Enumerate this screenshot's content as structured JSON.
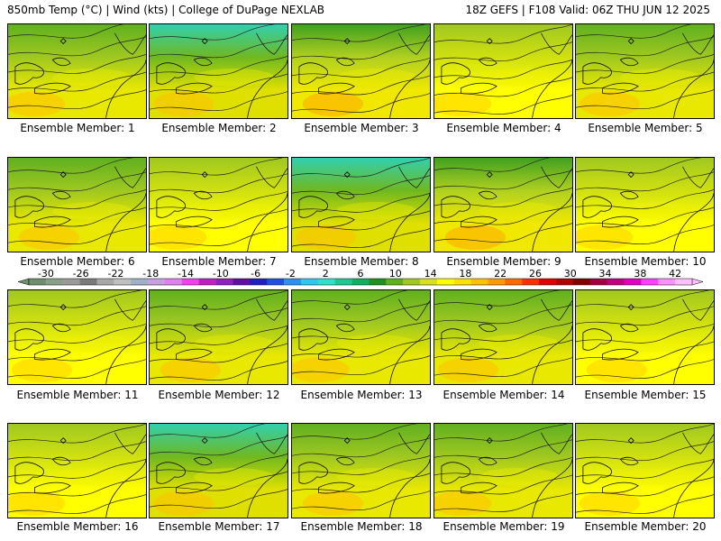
{
  "header": {
    "left": "850mb Temp (°C) | Wind (kts) | College of DuPage NEXLAB",
    "right": "18Z GEFS | F108 Valid: 06Z THU JUN 12 2025"
  },
  "members": [
    {
      "label": "Ensemble Member: 1",
      "variant": 0
    },
    {
      "label": "Ensemble Member: 2",
      "variant": 1
    },
    {
      "label": "Ensemble Member: 3",
      "variant": 2
    },
    {
      "label": "Ensemble Member: 4",
      "variant": 3
    },
    {
      "label": "Ensemble Member: 5",
      "variant": 0
    },
    {
      "label": "Ensemble Member: 6",
      "variant": 0
    },
    {
      "label": "Ensemble Member: 7",
      "variant": 3
    },
    {
      "label": "Ensemble Member: 8",
      "variant": 1
    },
    {
      "label": "Ensemble Member: 9",
      "variant": 2
    },
    {
      "label": "Ensemble Member: 10",
      "variant": 3
    },
    {
      "label": "Ensemble Member: 11",
      "variant": 3
    },
    {
      "label": "Ensemble Member: 12",
      "variant": 0
    },
    {
      "label": "Ensemble Member: 13",
      "variant": 0
    },
    {
      "label": "Ensemble Member: 14",
      "variant": 0
    },
    {
      "label": "Ensemble Member: 15",
      "variant": 3
    },
    {
      "label": "Ensemble Member: 16",
      "variant": 3
    },
    {
      "label": "Ensemble Member: 17",
      "variant": 1
    },
    {
      "label": "Ensemble Member: 18",
      "variant": 0
    },
    {
      "label": "Ensemble Member: 19",
      "variant": 0
    },
    {
      "label": "Ensemble Member: 20",
      "variant": 3
    }
  ],
  "colorbar": {
    "ticks": [
      "-30",
      "-26",
      "-22",
      "-18",
      "-14",
      "-10",
      "-6",
      "-2",
      "2",
      "6",
      "10",
      "14",
      "18",
      "22",
      "26",
      "30",
      "34",
      "38",
      "42"
    ],
    "colors": [
      "#6f8f6f",
      "#8aa08a",
      "#9a9a9a",
      "#7a7a7a",
      "#a8a8a8",
      "#c0c0c0",
      "#a0b0c8",
      "#c8a0e0",
      "#e080f0",
      "#f040f0",
      "#c020c0",
      "#9020c0",
      "#6010a0",
      "#2020c0",
      "#2050e0",
      "#3090f0",
      "#30c8f0",
      "#30e0c8",
      "#20c890",
      "#10b060",
      "#209020",
      "#60b020",
      "#a0c820",
      "#d8e020",
      "#ffff00",
      "#ffe000",
      "#ffc000",
      "#ff9a00",
      "#ff6a00",
      "#ff3000",
      "#e00000",
      "#b00000",
      "#800000",
      "#a00040",
      "#c00080",
      "#e000c0",
      "#ff40ff",
      "#ff90ff",
      "#ffc0ff"
    ]
  },
  "palettes": [
    {
      "north": "#60b020",
      "mid": "#a0c820",
      "south": "#e8e800",
      "warm": "#ffc000"
    },
    {
      "north": "#30d0b0",
      "mid": "#70b820",
      "south": "#e0e000",
      "warm": "#ffc000"
    },
    {
      "north": "#40a020",
      "mid": "#b0d020",
      "south": "#f0e800",
      "warm": "#ffa800"
    },
    {
      "north": "#a0c820",
      "mid": "#d0e010",
      "south": "#ffff00",
      "warm": "#ffd000"
    }
  ]
}
